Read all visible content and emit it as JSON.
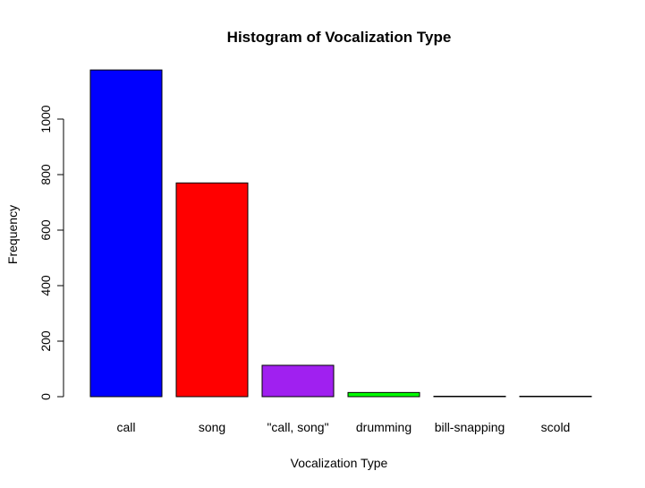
{
  "chart_data": {
    "type": "bar",
    "title": "Histogram of Vocalization Type",
    "xlabel": "Vocalization Type",
    "ylabel": "Frequency",
    "categories": [
      "call",
      "song",
      "\"call, song\"",
      "drumming",
      "bill-snapping",
      "scold"
    ],
    "values": [
      1177,
      770,
      113,
      15,
      1,
      1
    ],
    "colors": [
      "#0000ff",
      "#ff0000",
      "#a020f0",
      "#00ff00",
      "#ffffff",
      "#ffffff"
    ],
    "yticks": [
      0,
      200,
      400,
      600,
      800,
      1000
    ],
    "ylim": [
      0,
      1177
    ],
    "grid": false,
    "legend": "none"
  }
}
